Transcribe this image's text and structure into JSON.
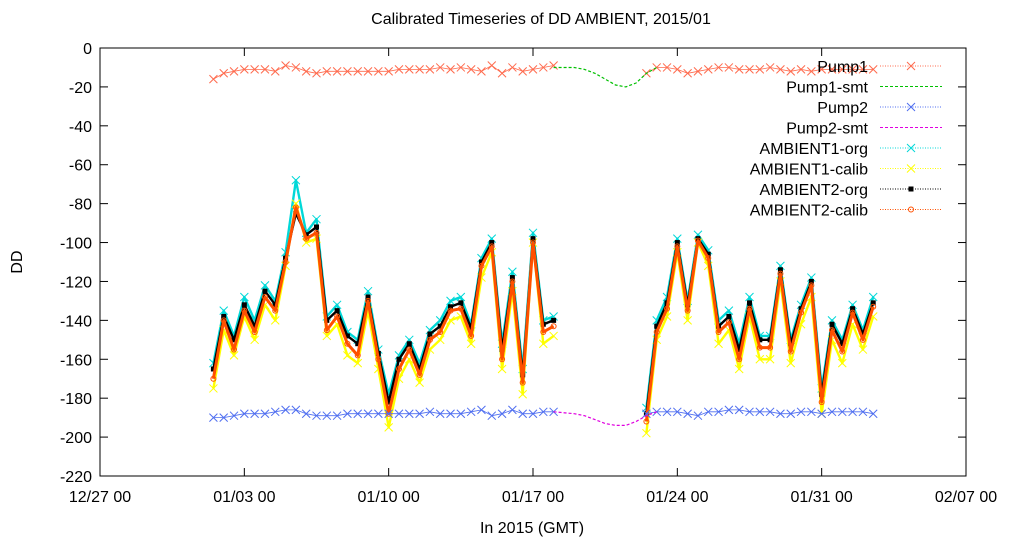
{
  "chart_data": {
    "type": "line",
    "title": "Calibrated Timeseries of DD AMBIENT, 2015/01",
    "xlabel": "In 2015 (GMT)",
    "ylabel": "DD",
    "x_range": [
      "2014-12-27 00:00",
      "2015-02-07 00:00"
    ],
    "ylim": [
      -220,
      0
    ],
    "x_ticks": [
      "12/27 00",
      "01/03 00",
      "01/10 00",
      "01/17 00",
      "01/24 00",
      "01/31 00",
      "02/07 00"
    ],
    "y_ticks": [
      0,
      -20,
      -40,
      -60,
      -80,
      -100,
      -120,
      -140,
      -160,
      -180,
      -200,
      -220
    ],
    "grid": false,
    "legend_position": "top-right",
    "series": [
      {
        "name": "Pump1",
        "color": "#ff6a4d",
        "marker": "x",
        "x": [
          "2015-01-01 12:00",
          "2015-01-02 00:00",
          "2015-01-02 12:00",
          "2015-01-03 00:00",
          "2015-01-03 12:00",
          "2015-01-04 00:00",
          "2015-01-04 12:00",
          "2015-01-05 00:00",
          "2015-01-05 12:00",
          "2015-01-06 00:00",
          "2015-01-06 12:00",
          "2015-01-07 00:00",
          "2015-01-07 12:00",
          "2015-01-08 00:00",
          "2015-01-08 12:00",
          "2015-01-09 00:00",
          "2015-01-09 12:00",
          "2015-01-10 00:00",
          "2015-01-10 12:00",
          "2015-01-11 00:00",
          "2015-01-11 12:00",
          "2015-01-12 00:00",
          "2015-01-12 12:00",
          "2015-01-13 00:00",
          "2015-01-13 12:00",
          "2015-01-14 00:00",
          "2015-01-14 12:00",
          "2015-01-15 00:00",
          "2015-01-15 12:00",
          "2015-01-16 00:00",
          "2015-01-16 12:00",
          "2015-01-17 00:00",
          "2015-01-17 12:00",
          "2015-01-18 00:00",
          "2015-01-22 12:00",
          "2015-01-23 00:00",
          "2015-01-23 12:00",
          "2015-01-24 00:00",
          "2015-01-24 12:00",
          "2015-01-25 00:00",
          "2015-01-25 12:00",
          "2015-01-26 00:00",
          "2015-01-26 12:00",
          "2015-01-27 00:00",
          "2015-01-27 12:00",
          "2015-01-28 00:00",
          "2015-01-28 12:00",
          "2015-01-29 00:00",
          "2015-01-29 12:00",
          "2015-01-30 00:00",
          "2015-01-30 12:00",
          "2015-01-31 00:00",
          "2015-01-31 12:00",
          "2015-02-01 00:00",
          "2015-02-01 12:00",
          "2015-02-02 00:00",
          "2015-02-02 12:00"
        ],
        "values": [
          -16,
          -13,
          -12,
          -11,
          -11,
          -11,
          -12,
          -9,
          -10,
          -12,
          -13,
          -12,
          -12,
          -12,
          -12,
          -12,
          -12,
          -12,
          -11,
          -11,
          -11,
          -11,
          -10,
          -11,
          -10,
          -11,
          -12,
          -9,
          -13,
          -10,
          -12,
          -11,
          -10,
          -9,
          -13,
          -10,
          -10,
          -11,
          -13,
          -12,
          -11,
          -10,
          -10,
          -11,
          -11,
          -11,
          -10,
          -11,
          -12,
          -11,
          -12,
          -11,
          -11,
          -11,
          -11,
          -11,
          -11
        ]
      },
      {
        "name": "Pump1-smt",
        "color": "#00c000",
        "marker": "none",
        "x": [
          "2015-01-18 00:00",
          "2015-01-19 00:00",
          "2015-01-19 12:00",
          "2015-01-20 00:00",
          "2015-01-20 12:00",
          "2015-01-21 00:00",
          "2015-01-21 12:00",
          "2015-01-22 00:00",
          "2015-01-22 12:00",
          "2015-01-23 00:00"
        ],
        "values": [
          -10,
          -10,
          -11,
          -13,
          -16,
          -19,
          -20,
          -18,
          -13,
          -10
        ]
      },
      {
        "name": "Pump2",
        "color": "#4f6ef0",
        "marker": "x",
        "x": [
          "2015-01-01 12:00",
          "2015-01-02 00:00",
          "2015-01-02 12:00",
          "2015-01-03 00:00",
          "2015-01-03 12:00",
          "2015-01-04 00:00",
          "2015-01-04 12:00",
          "2015-01-05 00:00",
          "2015-01-05 12:00",
          "2015-01-06 00:00",
          "2015-01-06 12:00",
          "2015-01-07 00:00",
          "2015-01-07 12:00",
          "2015-01-08 00:00",
          "2015-01-08 12:00",
          "2015-01-09 00:00",
          "2015-01-09 12:00",
          "2015-01-10 00:00",
          "2015-01-10 12:00",
          "2015-01-11 00:00",
          "2015-01-11 12:00",
          "2015-01-12 00:00",
          "2015-01-12 12:00",
          "2015-01-13 00:00",
          "2015-01-13 12:00",
          "2015-01-14 00:00",
          "2015-01-14 12:00",
          "2015-01-15 00:00",
          "2015-01-15 12:00",
          "2015-01-16 00:00",
          "2015-01-16 12:00",
          "2015-01-17 00:00",
          "2015-01-17 12:00",
          "2015-01-18 00:00",
          "2015-01-22 12:00",
          "2015-01-23 00:00",
          "2015-01-23 12:00",
          "2015-01-24 00:00",
          "2015-01-24 12:00",
          "2015-01-25 00:00",
          "2015-01-25 12:00",
          "2015-01-26 00:00",
          "2015-01-26 12:00",
          "2015-01-27 00:00",
          "2015-01-27 12:00",
          "2015-01-28 00:00",
          "2015-01-28 12:00",
          "2015-01-29 00:00",
          "2015-01-29 12:00",
          "2015-01-30 00:00",
          "2015-01-30 12:00",
          "2015-01-31 00:00",
          "2015-01-31 12:00",
          "2015-02-01 00:00",
          "2015-02-01 12:00",
          "2015-02-02 00:00",
          "2015-02-02 12:00"
        ],
        "values": [
          -190,
          -190,
          -189,
          -188,
          -188,
          -188,
          -187,
          -186,
          -186,
          -188,
          -189,
          -189,
          -189,
          -188,
          -188,
          -188,
          -188,
          -188,
          -188,
          -188,
          -188,
          -187,
          -188,
          -188,
          -188,
          -187,
          -186,
          -189,
          -188,
          -186,
          -188,
          -188,
          -187,
          -187,
          -188,
          -187,
          -187,
          -187,
          -188,
          -189,
          -187,
          -187,
          -186,
          -186,
          -187,
          -187,
          -187,
          -188,
          -188,
          -187,
          -187,
          -188,
          -187,
          -187,
          -187,
          -187,
          -188
        ]
      },
      {
        "name": "Pump2-smt",
        "color": "#e000e0",
        "marker": "none",
        "x": [
          "2015-01-18 00:00",
          "2015-01-19 00:00",
          "2015-01-19 12:00",
          "2015-01-20 00:00",
          "2015-01-20 12:00",
          "2015-01-21 00:00",
          "2015-01-21 12:00",
          "2015-01-22 00:00",
          "2015-01-22 12:00",
          "2015-01-23 00:00"
        ],
        "values": [
          -187,
          -188,
          -189,
          -191,
          -193,
          -194,
          -194,
          -192,
          -189,
          -187
        ]
      },
      {
        "name": "AMBIENT1-org",
        "color": "#00d8d8",
        "marker": "x",
        "x": [
          "2015-01-01 12:00",
          "2015-01-02 00:00",
          "2015-01-02 12:00",
          "2015-01-03 00:00",
          "2015-01-03 12:00",
          "2015-01-04 00:00",
          "2015-01-04 12:00",
          "2015-01-05 00:00",
          "2015-01-05 12:00",
          "2015-01-06 00:00",
          "2015-01-06 12:00",
          "2015-01-07 00:00",
          "2015-01-07 12:00",
          "2015-01-08 00:00",
          "2015-01-08 12:00",
          "2015-01-09 00:00",
          "2015-01-09 12:00",
          "2015-01-10 00:00",
          "2015-01-10 12:00",
          "2015-01-11 00:00",
          "2015-01-11 12:00",
          "2015-01-12 00:00",
          "2015-01-12 12:00",
          "2015-01-13 00:00",
          "2015-01-13 12:00",
          "2015-01-14 00:00",
          "2015-01-14 12:00",
          "2015-01-15 00:00",
          "2015-01-15 12:00",
          "2015-01-16 00:00",
          "2015-01-16 12:00",
          "2015-01-17 00:00",
          "2015-01-17 12:00",
          "2015-01-18 00:00",
          "2015-01-22 12:00",
          "2015-01-23 00:00",
          "2015-01-23 12:00",
          "2015-01-24 00:00",
          "2015-01-24 12:00",
          "2015-01-25 00:00",
          "2015-01-25 12:00",
          "2015-01-26 00:00",
          "2015-01-26 12:00",
          "2015-01-27 00:00",
          "2015-01-27 12:00",
          "2015-01-28 00:00",
          "2015-01-28 12:00",
          "2015-01-29 00:00",
          "2015-01-29 12:00",
          "2015-01-30 00:00",
          "2015-01-30 12:00",
          "2015-01-31 00:00",
          "2015-01-31 12:00",
          "2015-02-01 00:00",
          "2015-02-01 12:00",
          "2015-02-02 00:00",
          "2015-02-02 12:00"
        ],
        "values": [
          -162,
          -135,
          -148,
          -128,
          -140,
          -122,
          -130,
          -105,
          -68,
          -95,
          -88,
          -138,
          -132,
          -146,
          -150,
          -125,
          -155,
          -178,
          -158,
          -150,
          -162,
          -145,
          -140,
          -130,
          -128,
          -142,
          -108,
          -98,
          -152,
          -115,
          -165,
          -95,
          -140,
          -138,
          -185,
          -140,
          -128,
          -98,
          -130,
          -96,
          -104,
          -140,
          -135,
          -152,
          -128,
          -148,
          -148,
          -112,
          -150,
          -132,
          -118,
          -175,
          -140,
          -150,
          -132,
          -145,
          -128
        ]
      },
      {
        "name": "AMBIENT1-calib",
        "color": "#ffff00",
        "marker": "x",
        "x": [
          "2015-01-01 12:00",
          "2015-01-02 00:00",
          "2015-01-02 12:00",
          "2015-01-03 00:00",
          "2015-01-03 12:00",
          "2015-01-04 00:00",
          "2015-01-04 12:00",
          "2015-01-05 00:00",
          "2015-01-05 12:00",
          "2015-01-06 00:00",
          "2015-01-06 12:00",
          "2015-01-07 00:00",
          "2015-01-07 12:00",
          "2015-01-08 00:00",
          "2015-01-08 12:00",
          "2015-01-09 00:00",
          "2015-01-09 12:00",
          "2015-01-10 00:00",
          "2015-01-10 12:00",
          "2015-01-11 00:00",
          "2015-01-11 12:00",
          "2015-01-12 00:00",
          "2015-01-12 12:00",
          "2015-01-13 00:00",
          "2015-01-13 12:00",
          "2015-01-14 00:00",
          "2015-01-14 12:00",
          "2015-01-15 00:00",
          "2015-01-15 12:00",
          "2015-01-16 00:00",
          "2015-01-16 12:00",
          "2015-01-17 00:00",
          "2015-01-17 12:00",
          "2015-01-18 00:00",
          "2015-01-22 12:00",
          "2015-01-23 00:00",
          "2015-01-23 12:00",
          "2015-01-24 00:00",
          "2015-01-24 12:00",
          "2015-01-25 00:00",
          "2015-01-25 12:00",
          "2015-01-26 00:00",
          "2015-01-26 12:00",
          "2015-01-27 00:00",
          "2015-01-27 12:00",
          "2015-01-28 00:00",
          "2015-01-28 12:00",
          "2015-01-29 00:00",
          "2015-01-29 12:00",
          "2015-01-30 00:00",
          "2015-01-30 12:00",
          "2015-01-31 00:00",
          "2015-01-31 12:00",
          "2015-02-01 00:00",
          "2015-02-01 12:00",
          "2015-02-02 00:00",
          "2015-02-02 12:00"
        ],
        "values": [
          -175,
          -145,
          -158,
          -138,
          -150,
          -132,
          -140,
          -112,
          -80,
          -100,
          -98,
          -148,
          -142,
          -158,
          -162,
          -135,
          -165,
          -195,
          -170,
          -160,
          -172,
          -155,
          -150,
          -140,
          -138,
          -152,
          -118,
          -105,
          -165,
          -125,
          -178,
          -100,
          -152,
          -148,
          -198,
          -150,
          -138,
          -105,
          -140,
          -100,
          -112,
          -152,
          -145,
          -165,
          -138,
          -160,
          -160,
          -120,
          -162,
          -142,
          -128,
          -188,
          -150,
          -162,
          -142,
          -155,
          -138
        ]
      },
      {
        "name": "AMBIENT2-org",
        "color": "#000000",
        "marker": "square",
        "x": [
          "2015-01-01 12:00",
          "2015-01-02 00:00",
          "2015-01-02 12:00",
          "2015-01-03 00:00",
          "2015-01-03 12:00",
          "2015-01-04 00:00",
          "2015-01-04 12:00",
          "2015-01-05 00:00",
          "2015-01-05 12:00",
          "2015-01-06 00:00",
          "2015-01-06 12:00",
          "2015-01-07 00:00",
          "2015-01-07 12:00",
          "2015-01-08 00:00",
          "2015-01-08 12:00",
          "2015-01-09 00:00",
          "2015-01-09 12:00",
          "2015-01-10 00:00",
          "2015-01-10 12:00",
          "2015-01-11 00:00",
          "2015-01-11 12:00",
          "2015-01-12 00:00",
          "2015-01-12 12:00",
          "2015-01-13 00:00",
          "2015-01-13 12:00",
          "2015-01-14 00:00",
          "2015-01-14 12:00",
          "2015-01-15 00:00",
          "2015-01-15 12:00",
          "2015-01-16 00:00",
          "2015-01-16 12:00",
          "2015-01-17 00:00",
          "2015-01-17 12:00",
          "2015-01-18 00:00",
          "2015-01-22 12:00",
          "2015-01-23 00:00",
          "2015-01-23 12:00",
          "2015-01-24 00:00",
          "2015-01-24 12:00",
          "2015-01-25 00:00",
          "2015-01-25 12:00",
          "2015-01-26 00:00",
          "2015-01-26 12:00",
          "2015-01-27 00:00",
          "2015-01-27 12:00",
          "2015-01-28 00:00",
          "2015-01-28 12:00",
          "2015-01-29 00:00",
          "2015-01-29 12:00",
          "2015-01-30 00:00",
          "2015-01-30 12:00",
          "2015-01-31 00:00",
          "2015-01-31 12:00",
          "2015-02-01 00:00",
          "2015-02-01 12:00",
          "2015-02-02 00:00",
          "2015-02-02 12:00"
        ],
        "values": [
          -165,
          -138,
          -150,
          -132,
          -143,
          -125,
          -132,
          -108,
          -85,
          -96,
          -92,
          -140,
          -135,
          -148,
          -152,
          -128,
          -157,
          -182,
          -160,
          -152,
          -165,
          -147,
          -143,
          -133,
          -131,
          -144,
          -110,
          -100,
          -155,
          -118,
          -168,
          -98,
          -142,
          -140,
          -188,
          -143,
          -131,
          -100,
          -132,
          -98,
          -106,
          -143,
          -138,
          -155,
          -131,
          -150,
          -150,
          -114,
          -152,
          -134,
          -120,
          -178,
          -142,
          -152,
          -134,
          -147,
          -131
        ]
      },
      {
        "name": "AMBIENT2-calib",
        "color": "#ff5000",
        "marker": "circle",
        "x": [
          "2015-01-01 12:00",
          "2015-01-02 00:00",
          "2015-01-02 12:00",
          "2015-01-03 00:00",
          "2015-01-03 12:00",
          "2015-01-04 00:00",
          "2015-01-04 12:00",
          "2015-01-05 00:00",
          "2015-01-05 12:00",
          "2015-01-06 00:00",
          "2015-01-06 12:00",
          "2015-01-07 00:00",
          "2015-01-07 12:00",
          "2015-01-08 00:00",
          "2015-01-08 12:00",
          "2015-01-09 00:00",
          "2015-01-09 12:00",
          "2015-01-10 00:00",
          "2015-01-10 12:00",
          "2015-01-11 00:00",
          "2015-01-11 12:00",
          "2015-01-12 00:00",
          "2015-01-12 12:00",
          "2015-01-13 00:00",
          "2015-01-13 12:00",
          "2015-01-14 00:00",
          "2015-01-14 12:00",
          "2015-01-15 00:00",
          "2015-01-15 12:00",
          "2015-01-16 00:00",
          "2015-01-16 12:00",
          "2015-01-17 00:00",
          "2015-01-17 12:00",
          "2015-01-18 00:00",
          "2015-01-22 12:00",
          "2015-01-23 00:00",
          "2015-01-23 12:00",
          "2015-01-24 00:00",
          "2015-01-24 12:00",
          "2015-01-25 00:00",
          "2015-01-25 12:00",
          "2015-01-26 00:00",
          "2015-01-26 12:00",
          "2015-01-27 00:00",
          "2015-01-27 12:00",
          "2015-01-28 00:00",
          "2015-01-28 12:00",
          "2015-01-29 00:00",
          "2015-01-29 12:00",
          "2015-01-30 00:00",
          "2015-01-30 12:00",
          "2015-01-31 00:00",
          "2015-01-31 12:00",
          "2015-02-01 00:00",
          "2015-02-01 12:00",
          "2015-02-02 00:00",
          "2015-02-02 12:00"
        ],
        "values": [
          -170,
          -140,
          -155,
          -135,
          -146,
          -128,
          -135,
          -110,
          -82,
          -98,
          -95,
          -145,
          -138,
          -152,
          -158,
          -130,
          -160,
          -188,
          -165,
          -155,
          -168,
          -150,
          -146,
          -135,
          -134,
          -148,
          -112,
          -102,
          -160,
          -120,
          -172,
          -100,
          -146,
          -143,
          -192,
          -146,
          -134,
          -102,
          -135,
          -99,
          -108,
          -146,
          -141,
          -160,
          -134,
          -154,
          -154,
          -116,
          -156,
          -136,
          -122,
          -182,
          -145,
          -156,
          -136,
          -150,
          -133
        ]
      }
    ]
  }
}
